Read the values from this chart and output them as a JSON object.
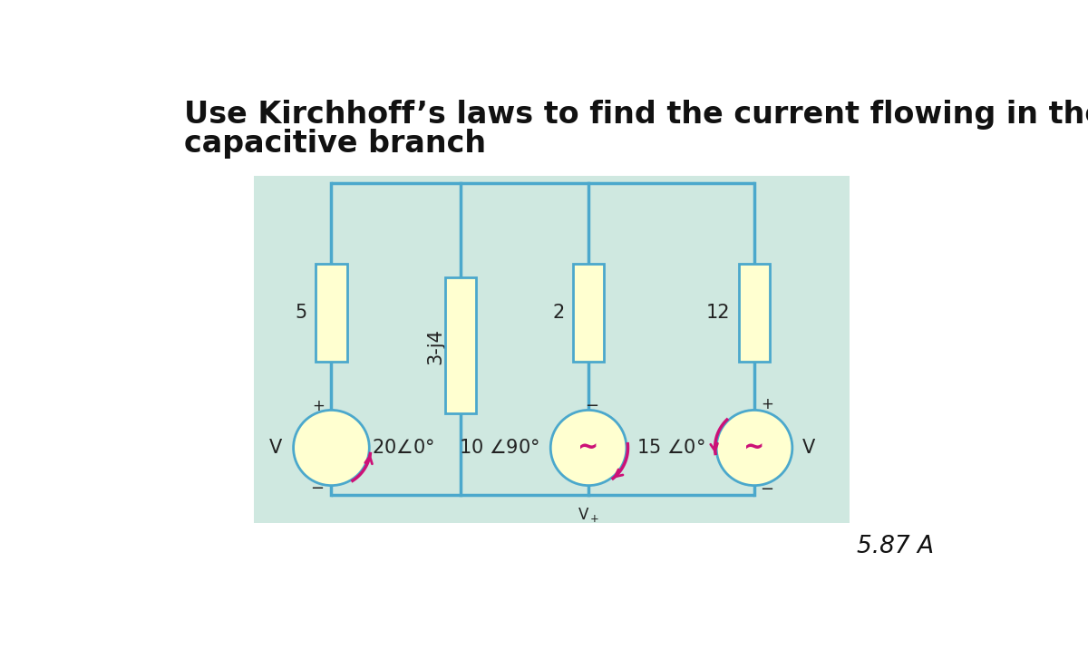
{
  "title_line1": "Use Kirchhoff’s laws to find the current flowing in the",
  "title_line2": "capacitive branch",
  "answer": "5.87 A",
  "bg_color": "#ffffff",
  "circuit_bg": "#cfe8e0",
  "wire_color": "#4ba8cc",
  "box_fill": "#ffffd0",
  "box_edge": "#4ba8cc",
  "source_fill": "#ffffd0",
  "source_edge": "#4ba8cc",
  "arrow_color": "#cc1177",
  "title_fontsize": 24,
  "answer_fontsize": 19,
  "label_fontsize": 15,
  "small_fontsize": 13
}
